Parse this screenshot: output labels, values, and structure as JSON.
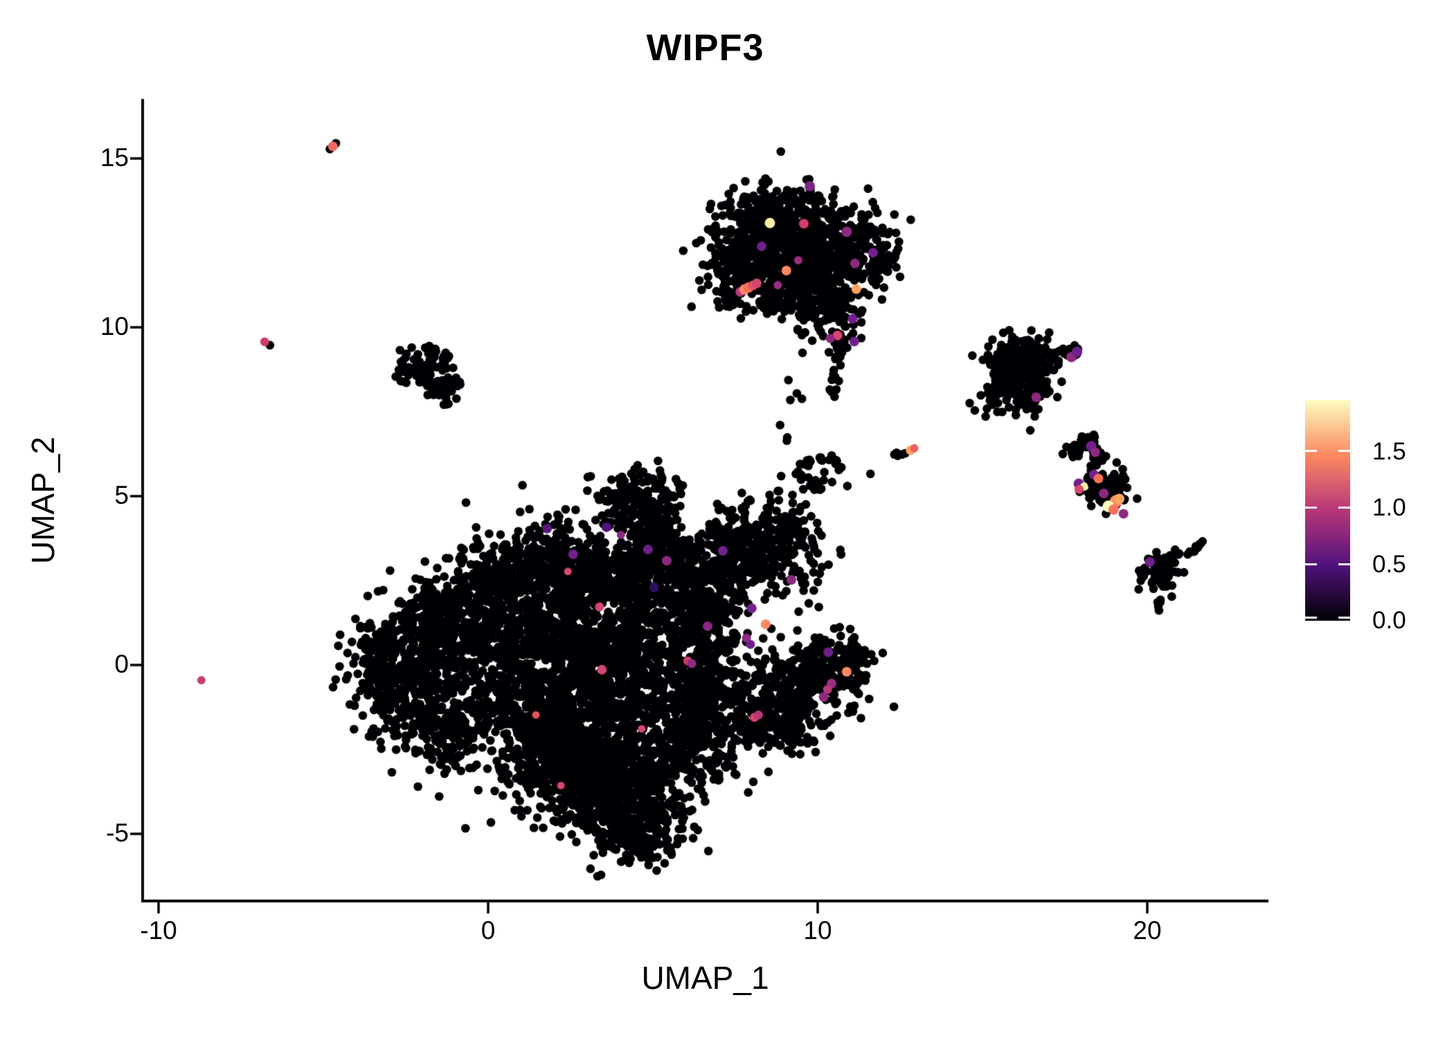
{
  "title": "WIPF3",
  "axes": {
    "x_label": "UMAP_1",
    "y_label": "UMAP_2"
  },
  "legend": {
    "ticks": [
      {
        "value": 1.5,
        "label": "1.5"
      },
      {
        "value": 1.0,
        "label": "1.0"
      },
      {
        "value": 0.5,
        "label": "0.5"
      },
      {
        "value": 0.0,
        "label": "0.0"
      }
    ]
  },
  "chart_data": {
    "type": "scatter",
    "title": "WIPF3",
    "xlabel": "UMAP_1",
    "ylabel": "UMAP_2",
    "xlim": [
      -10.5,
      23.6
    ],
    "ylim": [
      -7.0,
      16.7
    ],
    "x_ticks": [
      {
        "value": -10,
        "label": "-10"
      },
      {
        "value": 0,
        "label": "0"
      },
      {
        "value": 10,
        "label": "10"
      },
      {
        "value": 20,
        "label": "20"
      }
    ],
    "y_ticks": [
      {
        "value": 15,
        "label": "15"
      },
      {
        "value": 10,
        "label": "10"
      },
      {
        "value": 5,
        "label": "5"
      },
      {
        "value": 0,
        "label": "0"
      },
      {
        "value": -5,
        "label": "-5"
      }
    ],
    "grid": false,
    "legend_position": "right",
    "point_color_default": "#000004",
    "color_scale": {
      "name": "magma",
      "domain": [
        0,
        1.95
      ],
      "stops": [
        {
          "pos": 0.0,
          "color": "#000004"
        },
        {
          "pos": 0.25,
          "color": "#51127c"
        },
        {
          "pos": 0.5,
          "color": "#b73779"
        },
        {
          "pos": 0.75,
          "color": "#fc8961"
        },
        {
          "pos": 1.0,
          "color": "#fcfdbf"
        }
      ]
    },
    "clusters": [
      {
        "name": "main-central-blob",
        "blobs": [
          [
            0.8,
            0.2,
            1.0,
            1.2,
            500
          ],
          [
            -2.2,
            -0.3,
            0.95,
            1.05,
            450
          ],
          [
            -3.3,
            -0.1,
            0.45,
            0.6,
            100
          ],
          [
            -1.2,
            1.5,
            0.8,
            0.7,
            220
          ],
          [
            -1.3,
            -1.9,
            0.7,
            0.55,
            150
          ],
          [
            1.7,
            -1.9,
            0.85,
            0.8,
            320
          ],
          [
            2.9,
            -3.3,
            1.0,
            0.75,
            380
          ],
          [
            4.5,
            -4.7,
            0.75,
            0.6,
            260
          ],
          [
            4.3,
            -3.5,
            0.9,
            0.7,
            200
          ],
          [
            4.0,
            -1.0,
            1.5,
            1.3,
            500
          ],
          [
            2.3,
            1.4,
            1.0,
            0.85,
            280
          ],
          [
            0.4,
            2.8,
            0.7,
            0.55,
            160
          ],
          [
            3.6,
            2.7,
            1.3,
            0.55,
            400
          ],
          [
            1.9,
            3.4,
            0.55,
            0.65,
            140
          ],
          [
            4.6,
            4.85,
            0.6,
            0.42,
            200
          ],
          [
            5.6,
            1.4,
            0.9,
            0.9,
            270
          ],
          [
            6.55,
            -0.4,
            0.55,
            1.1,
            290
          ],
          [
            5.9,
            -2.4,
            0.85,
            0.7,
            240
          ],
          [
            5.3,
            3.5,
            0.7,
            0.5,
            140
          ],
          [
            6.8,
            2.2,
            0.45,
            0.7,
            120
          ],
          [
            2.5,
            -2.5,
            0.8,
            0.6,
            170
          ],
          [
            3.3,
            0.1,
            0.9,
            0.9,
            240
          ]
        ],
        "lines": [],
        "points": []
      },
      {
        "name": "mid-right-lobe",
        "blobs": [
          [
            8.6,
            3.5,
            0.75,
            0.65,
            260
          ],
          [
            7.6,
            2.9,
            0.45,
            0.5,
            90
          ],
          [
            7.15,
            3.6,
            0.3,
            0.5,
            50
          ],
          [
            10.1,
            5.3,
            0.25,
            0.2,
            15
          ]
        ],
        "lines": [
          [
            9.45,
            4.6,
            9.55,
            5.9,
            0.1,
            10
          ],
          [
            9.6,
            6.0,
            10.45,
            6.2,
            0.1,
            12
          ],
          [
            10.5,
            6.15,
            10.75,
            5.55,
            0.08,
            7
          ]
        ],
        "points": [
          [
            11.6,
            5.66
          ],
          [
            10.9,
            5.3
          ]
        ]
      },
      {
        "name": "lower-right-lobe",
        "blobs": [
          [
            9.5,
            -0.5,
            0.8,
            0.6,
            300
          ],
          [
            10.6,
            0.05,
            0.5,
            0.45,
            110
          ],
          [
            8.7,
            -1.8,
            0.6,
            0.45,
            130
          ],
          [
            7.9,
            -1.2,
            0.35,
            0.45,
            60
          ]
        ],
        "lines": [
          [
            10.9,
            0.45,
            11.5,
            0.3,
            0.1,
            8
          ]
        ],
        "points": []
      },
      {
        "name": "top-middle-cluster",
        "blobs": [
          [
            8.2,
            12.6,
            0.85,
            0.75,
            270
          ],
          [
            9.6,
            12.6,
            0.85,
            0.75,
            270
          ],
          [
            10.9,
            12.0,
            0.7,
            0.65,
            150
          ],
          [
            8.5,
            13.45,
            0.5,
            0.35,
            80
          ],
          [
            9.0,
            11.4,
            0.75,
            0.55,
            170
          ],
          [
            10.35,
            10.5,
            0.5,
            0.5,
            100
          ],
          [
            7.35,
            11.4,
            0.42,
            0.42,
            70
          ],
          [
            11.6,
            12.3,
            0.4,
            0.5,
            60
          ],
          [
            9.9,
            11.3,
            0.5,
            0.4,
            90
          ]
        ],
        "lines": [
          [
            10.68,
            9.65,
            10.5,
            8.0,
            0.1,
            22
          ],
          [
            9.66,
            13.72,
            9.78,
            14.1,
            0.05,
            7
          ],
          [
            8.95,
            6.6,
            9.35,
            8.6,
            0.15,
            7
          ]
        ],
        "points": [
          [
            9.65,
            13.46
          ]
        ]
      },
      {
        "name": "left-small-cluster",
        "blobs": [
          [
            -1.75,
            9.05,
            0.35,
            0.25,
            45
          ],
          [
            -2.4,
            8.67,
            0.28,
            0.16,
            25
          ],
          [
            -1.35,
            8.12,
            0.34,
            0.22,
            40
          ]
        ],
        "lines": [
          [
            -2.1,
            8.45,
            -1.6,
            8.3,
            0.08,
            6
          ]
        ],
        "points": []
      },
      {
        "name": "right-cluster",
        "blobs": [
          [
            16.1,
            9.05,
            0.5,
            0.35,
            170
          ],
          [
            16.55,
            8.4,
            0.35,
            0.45,
            110
          ],
          [
            15.6,
            8.35,
            0.3,
            0.3,
            40
          ],
          [
            15.4,
            7.9,
            0.45,
            0.3,
            22
          ]
        ],
        "lines": [
          [
            16.7,
            9.1,
            17.95,
            9.35,
            0.09,
            26
          ]
        ],
        "points": [
          [
            16.45,
            6.95
          ]
        ]
      },
      {
        "name": "right-elongated-cluster",
        "blobs": [
          [
            18.8,
            5.15,
            0.33,
            0.33,
            85
          ]
        ],
        "lines": [
          [
            17.55,
            6.15,
            18.3,
            6.75,
            0.1,
            30
          ],
          [
            18.3,
            6.7,
            18.55,
            5.9,
            0.1,
            22
          ],
          [
            18.35,
            5.75,
            18.2,
            5.3,
            0.08,
            10
          ]
        ],
        "points": []
      },
      {
        "name": "bottom-right-cluster",
        "blobs": [
          [
            20.45,
            2.85,
            0.33,
            0.28,
            65
          ]
        ],
        "lines": [
          [
            21.3,
            3.32,
            21.72,
            3.68,
            0.05,
            11
          ],
          [
            20.3,
            1.25,
            20.45,
            2.45,
            0.08,
            7
          ]
        ],
        "points": []
      },
      {
        "name": "tiny-isolates",
        "blobs": [],
        "lines": [
          [
            12.3,
            6.2,
            12.72,
            6.35,
            0.04,
            6
          ]
        ],
        "points": [
          [
            -6.62,
            9.47
          ],
          [
            -4.8,
            15.28
          ],
          [
            -4.62,
            15.45
          ]
        ]
      }
    ],
    "highlight_points": [
      [
        -8.7,
        -0.45,
        "#c73e6b",
        6
      ],
      [
        -6.78,
        9.57,
        "#c73e6b",
        6.5
      ],
      [
        -4.71,
        15.36,
        "#f0685f",
        7
      ],
      [
        12.82,
        6.36,
        "#fca55f",
        7
      ],
      [
        12.93,
        6.42,
        "#ee5d63",
        6
      ],
      [
        1.79,
        4.04,
        "#5c167f",
        7
      ],
      [
        3.59,
        4.08,
        "#51127c",
        7
      ],
      [
        4.03,
        3.85,
        "#8c2981",
        6
      ],
      [
        2.42,
        2.77,
        "#d9466f",
        5.5
      ],
      [
        2.58,
        3.28,
        "#71208d",
        7
      ],
      [
        4.85,
        3.42,
        "#6f1f8c",
        7
      ],
      [
        5.42,
        3.09,
        "#8c2981",
        7
      ],
      [
        3.38,
        1.72,
        "#d0486f",
        6.5
      ],
      [
        6.66,
        1.15,
        "#8c2981",
        7
      ],
      [
        5.04,
        2.3,
        "#2b115e",
        7
      ],
      [
        7.12,
        3.38,
        "#71208d",
        7
      ],
      [
        3.45,
        -0.14,
        "#d0486f",
        7
      ],
      [
        1.45,
        -1.48,
        "#e75263",
        5.5
      ],
      [
        6.06,
        0.12,
        "#c83e6d",
        6.5
      ],
      [
        6.18,
        0.04,
        "#8c2981",
        6.5
      ],
      [
        8.42,
        1.21,
        "#fc8961",
        7
      ],
      [
        8.0,
        1.68,
        "#71208d",
        7
      ],
      [
        7.84,
        0.8,
        "#8c2981",
        6.5
      ],
      [
        7.96,
        0.61,
        "#6f1f8c",
        6.5
      ],
      [
        2.21,
        -3.57,
        "#d9466f",
        5.5
      ],
      [
        4.66,
        -1.89,
        "#d9466f",
        5.5
      ],
      [
        9.2,
        2.52,
        "#8c2981",
        7
      ],
      [
        10.88,
        -0.2,
        "#fc8961",
        7
      ],
      [
        10.42,
        -0.55,
        "#9b2d80",
        7
      ],
      [
        10.3,
        -0.72,
        "#b73779",
        6.5
      ],
      [
        10.18,
        -0.95,
        "#8c2981",
        7
      ],
      [
        10.32,
        0.38,
        "#6f1f8c",
        7
      ],
      [
        8.08,
        -1.55,
        "#d9466f",
        6.5
      ],
      [
        8.2,
        -1.48,
        "#b73779",
        6.5
      ],
      [
        9.76,
        14.18,
        "#7b2382",
        7.5
      ],
      [
        8.55,
        13.09,
        "#fcf0a8",
        7.5
      ],
      [
        9.58,
        13.07,
        "#cf3d6c",
        7
      ],
      [
        8.3,
        12.4,
        "#71208d",
        7
      ],
      [
        10.88,
        12.83,
        "#8c2981",
        7.5
      ],
      [
        11.68,
        12.21,
        "#71208d",
        7
      ],
      [
        11.13,
        11.89,
        "#8c2981",
        7
      ],
      [
        9.41,
        11.99,
        "#9b2d80",
        6
      ],
      [
        9.05,
        11.68,
        "#fc8961",
        7
      ],
      [
        8.79,
        11.25,
        "#9b2d80",
        6
      ],
      [
        7.65,
        11.05,
        "#b73779",
        7
      ],
      [
        7.78,
        11.12,
        "#fc8961",
        7.5
      ],
      [
        7.9,
        11.18,
        "#f7705c",
        7.5
      ],
      [
        8.03,
        11.24,
        "#e75263",
        7
      ],
      [
        8.15,
        11.3,
        "#d0486f",
        7
      ],
      [
        11.17,
        11.13,
        "#fca55f",
        7
      ],
      [
        11.06,
        10.25,
        "#71208d",
        7
      ],
      [
        10.6,
        9.76,
        "#d9466f",
        7
      ],
      [
        11.11,
        9.58,
        "#6f1f8c",
        7
      ],
      [
        10.38,
        9.67,
        "#8c2981",
        6.5
      ],
      [
        17.7,
        9.12,
        "#8c2981",
        7.5
      ],
      [
        17.87,
        9.27,
        "#6f1f8c",
        7.5
      ],
      [
        16.63,
        7.93,
        "#8c2981",
        7
      ],
      [
        18.3,
        6.48,
        "#6f1f8c",
        7.5
      ],
      [
        18.42,
        6.3,
        "#8c2981",
        7
      ],
      [
        18.38,
        5.64,
        "#71208d",
        7
      ],
      [
        18.52,
        5.52,
        "#f7705c",
        7
      ],
      [
        17.92,
        5.37,
        "#6f1f8c",
        7.5
      ],
      [
        18.08,
        5.28,
        "#fcf0a8",
        6
      ],
      [
        17.93,
        5.2,
        "#d9466f",
        6.5
      ],
      [
        18.68,
        5.08,
        "#8c2981",
        7
      ],
      [
        19.05,
        4.85,
        "#fc8961",
        9
      ],
      [
        19.15,
        4.92,
        "#fca55f",
        7.5
      ],
      [
        18.82,
        4.7,
        "#fcfdbf",
        8.5
      ],
      [
        18.98,
        4.6,
        "#f7705c",
        7.5
      ],
      [
        19.28,
        4.48,
        "#8c2981",
        7
      ],
      [
        20.08,
        3.05,
        "#71208d",
        7
      ]
    ]
  }
}
